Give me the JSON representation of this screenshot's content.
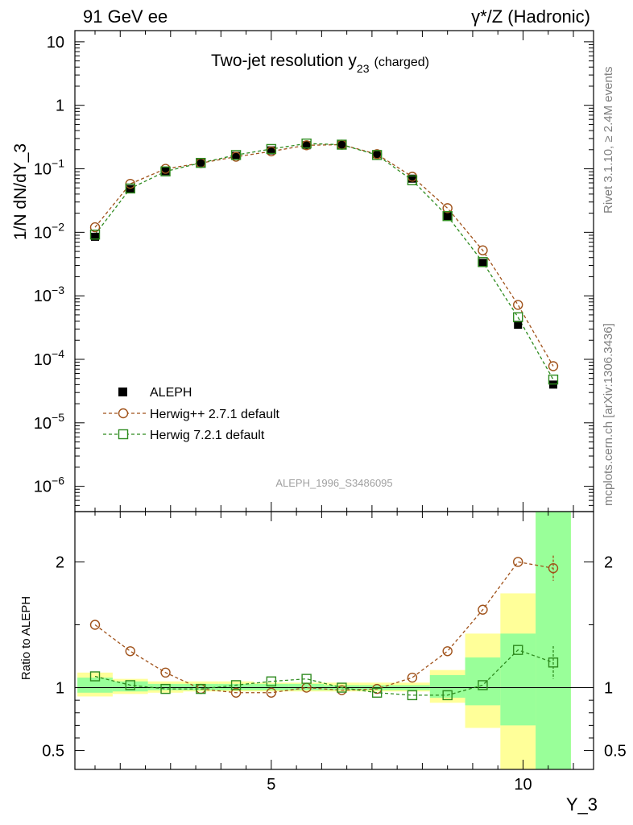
{
  "header": {
    "left": "91 GeV ee",
    "right": "γ*/Z (Hadronic)"
  },
  "side_labels": {
    "rivet": "Rivet 3.1.10, ≥ 2.4M events",
    "mcplots": "mcplots.cern.ch [arXiv:1306.3436]"
  },
  "colors": {
    "aleph": "#000000",
    "herwigpp": "#a0521a",
    "herwig7": "#2e8b1f",
    "band_yellow": "#ffff99",
    "band_green": "#99ff99"
  },
  "chart_data": [
    {
      "type": "line",
      "title": "Two-jet resolution y",
      "title_sub": "23",
      "title_note": "(charged)",
      "xlabel": "Y_3",
      "ylabel": "1/N dN/dY_3",
      "yscale": "log",
      "ylim": [
        4e-07,
        15
      ],
      "xlim": [
        1.1,
        11.4
      ],
      "y_ticks": [
        {
          "v": 1e-06,
          "base": "10",
          "exp": "−6"
        },
        {
          "v": 1e-05,
          "base": "10",
          "exp": "−5"
        },
        {
          "v": 0.0001,
          "base": "10",
          "exp": "−4"
        },
        {
          "v": 0.001,
          "base": "10",
          "exp": "−3"
        },
        {
          "v": 0.01,
          "base": "10",
          "exp": "−2"
        },
        {
          "v": 0.1,
          "base": "10",
          "exp": "−1"
        },
        {
          "v": 1,
          "base": "1",
          "exp": ""
        },
        {
          "v": 10,
          "base": "10",
          "exp": ""
        }
      ],
      "watermark": "ALEPH_1996_S3486095",
      "legend_position": "bottom-left",
      "x": [
        1.5,
        2.2,
        2.9,
        3.6,
        4.3,
        5.0,
        5.7,
        6.4,
        7.1,
        7.8,
        8.5,
        9.2,
        9.9,
        10.6
      ],
      "series": [
        {
          "name": "ALEPH",
          "marker": "filled-square",
          "values": [
            0.0085,
            0.048,
            0.092,
            0.125,
            0.16,
            0.195,
            0.235,
            0.24,
            0.17,
            0.07,
            0.018,
            0.0033,
            0.00035,
            4e-05
          ]
        },
        {
          "name": "Herwig++ 2.7.1 default",
          "marker": "open-circle",
          "values": [
            0.012,
            0.058,
            0.1,
            0.123,
            0.155,
            0.188,
            0.235,
            0.24,
            0.17,
            0.075,
            0.024,
            0.0052,
            0.00072,
            7.8e-05
          ]
        },
        {
          "name": "Herwig 7.2.1 default",
          "marker": "open-square",
          "values": [
            0.0092,
            0.049,
            0.091,
            0.124,
            0.165,
            0.205,
            0.25,
            0.24,
            0.165,
            0.066,
            0.018,
            0.0034,
            0.00046,
            4.8e-05
          ]
        }
      ]
    },
    {
      "type": "line",
      "ylabel": "Ratio to ALEPH",
      "xlabel": "Y_3",
      "ylim": [
        0.35,
        2.4
      ],
      "xlim": [
        1.1,
        11.4
      ],
      "y_ticks": [
        {
          "v": 0.5,
          "label": "0.5"
        },
        {
          "v": 1,
          "label": "1"
        },
        {
          "v": 2,
          "label": "2"
        }
      ],
      "x_ticks": [
        {
          "v": 5,
          "label": "5"
        },
        {
          "v": 10,
          "label": "10"
        }
      ],
      "x": [
        1.5,
        2.2,
        2.9,
        3.6,
        4.3,
        5.0,
        5.7,
        6.4,
        7.1,
        7.8,
        8.5,
        9.2,
        9.9,
        10.6
      ],
      "bin_edges": [
        1.15,
        1.85,
        2.55,
        3.25,
        3.95,
        4.65,
        5.35,
        6.05,
        6.75,
        7.45,
        8.15,
        8.85,
        9.55,
        10.25,
        10.95
      ],
      "band_yellow": [
        [
          0.93,
          1.12
        ],
        [
          0.95,
          1.07
        ],
        [
          0.96,
          1.05
        ],
        [
          0.97,
          1.05
        ],
        [
          0.97,
          1.05
        ],
        [
          0.97,
          1.04
        ],
        [
          0.97,
          1.04
        ],
        [
          0.97,
          1.04
        ],
        [
          0.97,
          1.04
        ],
        [
          0.97,
          1.04
        ],
        [
          0.88,
          1.14
        ],
        [
          0.68,
          1.43
        ],
        [
          0.35,
          1.75
        ],
        [
          0.35,
          2.4
        ]
      ],
      "band_green": [
        [
          0.96,
          1.08
        ],
        [
          0.97,
          1.05
        ],
        [
          0.98,
          1.03
        ],
        [
          0.98,
          1.03
        ],
        [
          0.98,
          1.03
        ],
        [
          0.98,
          1.03
        ],
        [
          0.98,
          1.03
        ],
        [
          0.98,
          1.02
        ],
        [
          0.98,
          1.02
        ],
        [
          0.98,
          1.02
        ],
        [
          0.92,
          1.1
        ],
        [
          0.86,
          1.24
        ],
        [
          0.7,
          1.43
        ],
        [
          0.35,
          2.4
        ]
      ],
      "series": [
        {
          "name": "Herwig++ 2.7.1 default",
          "marker": "open-circle",
          "values": [
            1.5,
            1.29,
            1.12,
            0.99,
            0.96,
            0.96,
            1.0,
            0.98,
            0.99,
            1.08,
            1.29,
            1.62,
            2.0,
            1.95
          ],
          "err_last": 0.1
        },
        {
          "name": "Herwig 7.2.1 default",
          "marker": "open-square",
          "values": [
            1.09,
            1.02,
            0.99,
            0.99,
            1.02,
            1.05,
            1.07,
            1.0,
            0.96,
            0.94,
            0.94,
            1.02,
            1.3,
            1.2
          ],
          "err_last": 0.13
        }
      ]
    }
  ]
}
